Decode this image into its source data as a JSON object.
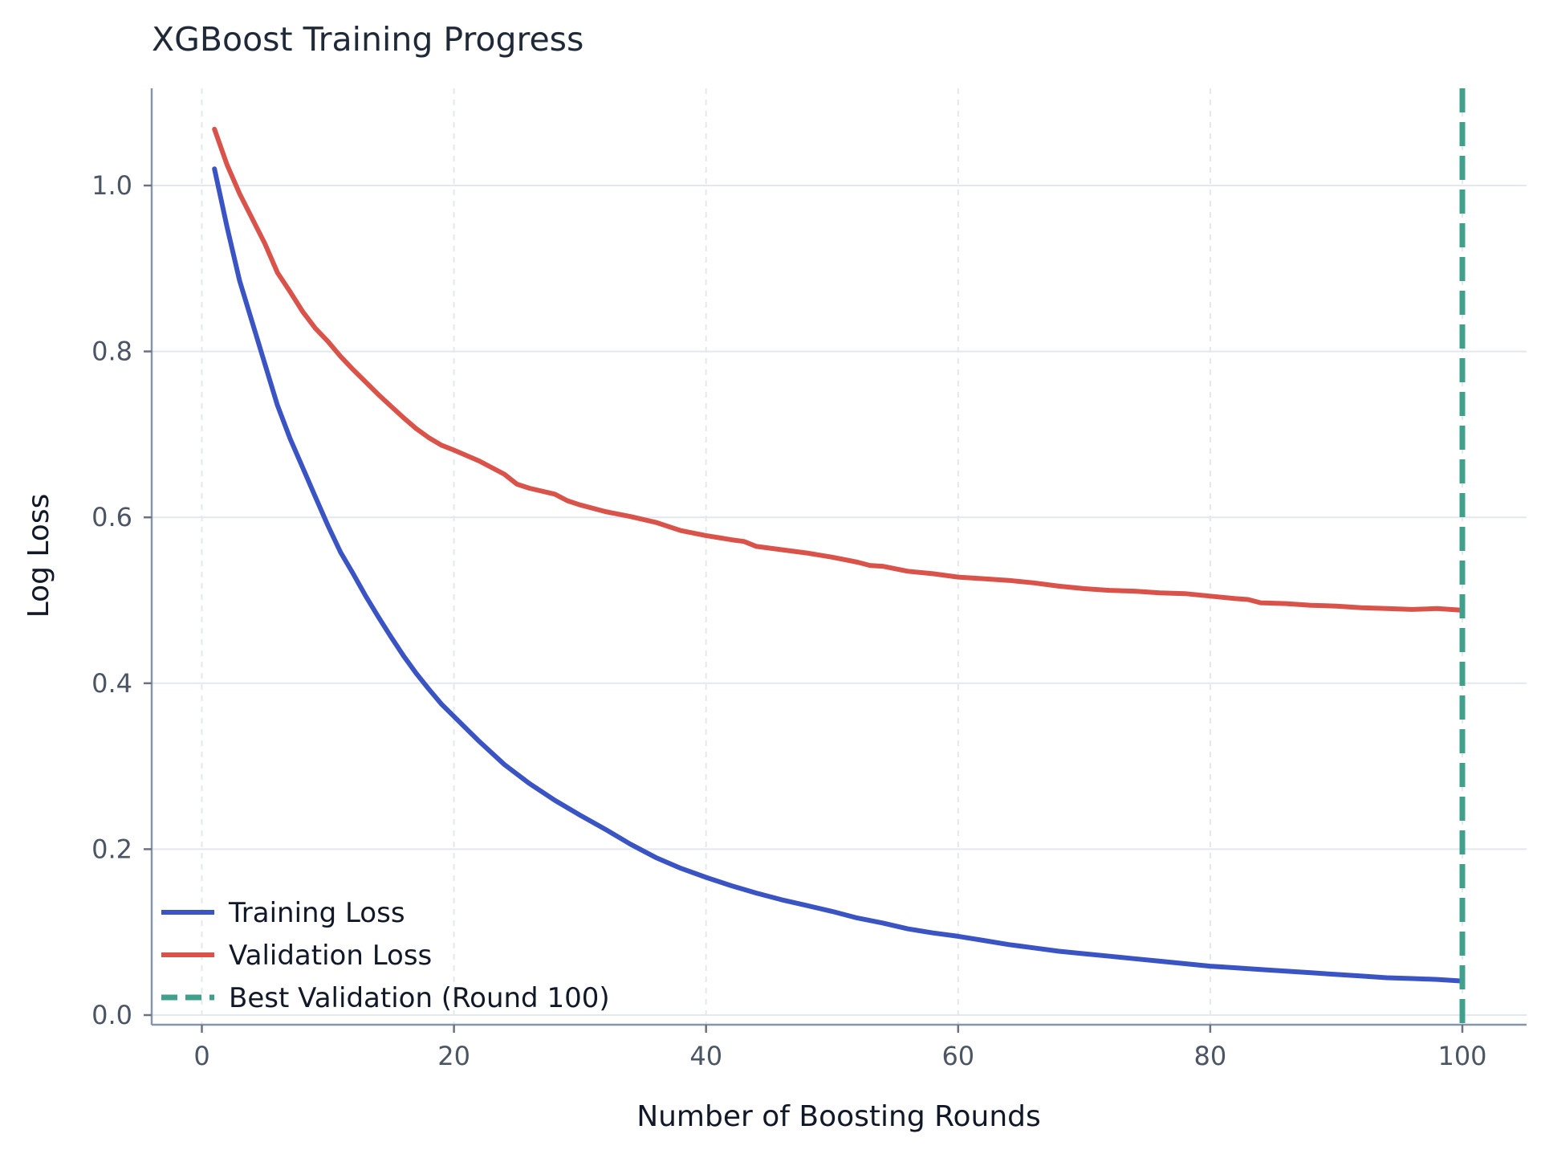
{
  "chart_data": {
    "type": "line",
    "title": "XGBoost Training Progress",
    "xlabel": "Number of Boosting Rounds",
    "ylabel": "Log Loss",
    "xlim": [
      -4,
      105
    ],
    "ylim": [
      -0.01,
      1.12
    ],
    "x_ticks": [
      0,
      20,
      40,
      60,
      80,
      100
    ],
    "y_ticks": [
      0.0,
      0.2,
      0.4,
      0.6,
      0.8,
      1.0
    ],
    "x_tick_labels": [
      "0",
      "20",
      "40",
      "60",
      "80",
      "100"
    ],
    "y_tick_labels": [
      "0.0",
      "0.2",
      "0.4",
      "0.6",
      "0.8",
      "1.0"
    ],
    "grid": true,
    "legend_position": "bottom-left",
    "series": [
      {
        "name": "Training Loss",
        "color": "#3b54c4",
        "anchors": [
          [
            1,
            1.02
          ],
          [
            2,
            0.95
          ],
          [
            3,
            0.885
          ],
          [
            4,
            0.835
          ],
          [
            5,
            0.785
          ],
          [
            6,
            0.735
          ],
          [
            7,
            0.695
          ],
          [
            8,
            0.66
          ],
          [
            9,
            0.625
          ],
          [
            10,
            0.59
          ],
          [
            11,
            0.558
          ],
          [
            12,
            0.532
          ],
          [
            13,
            0.505
          ],
          [
            14,
            0.48
          ],
          [
            15,
            0.456
          ],
          [
            16,
            0.433
          ],
          [
            17,
            0.412
          ],
          [
            18,
            0.393
          ],
          [
            19,
            0.375
          ],
          [
            20,
            0.36
          ],
          [
            22,
            0.33
          ],
          [
            24,
            0.302
          ],
          [
            26,
            0.279
          ],
          [
            28,
            0.259
          ],
          [
            30,
            0.241
          ],
          [
            32,
            0.224
          ],
          [
            34,
            0.206
          ],
          [
            36,
            0.19
          ],
          [
            38,
            0.177
          ],
          [
            40,
            0.166
          ],
          [
            42,
            0.156
          ],
          [
            44,
            0.147
          ],
          [
            46,
            0.139
          ],
          [
            48,
            0.132
          ],
          [
            50,
            0.125
          ],
          [
            52,
            0.117
          ],
          [
            54,
            0.111
          ],
          [
            56,
            0.104
          ],
          [
            58,
            0.099
          ],
          [
            60,
            0.095
          ],
          [
            62,
            0.09
          ],
          [
            64,
            0.085
          ],
          [
            66,
            0.081
          ],
          [
            68,
            0.077
          ],
          [
            70,
            0.074
          ],
          [
            72,
            0.071
          ],
          [
            74,
            0.068
          ],
          [
            76,
            0.065
          ],
          [
            78,
            0.062
          ],
          [
            80,
            0.059
          ],
          [
            82,
            0.057
          ],
          [
            84,
            0.055
          ],
          [
            86,
            0.053
          ],
          [
            88,
            0.051
          ],
          [
            90,
            0.049
          ],
          [
            92,
            0.047
          ],
          [
            94,
            0.045
          ],
          [
            96,
            0.044
          ],
          [
            98,
            0.043
          ],
          [
            100,
            0.041
          ]
        ]
      },
      {
        "name": "Validation Loss",
        "color": "#d9534a",
        "anchors": [
          [
            1,
            1.068
          ],
          [
            2,
            1.025
          ],
          [
            3,
            0.99
          ],
          [
            4,
            0.96
          ],
          [
            5,
            0.93
          ],
          [
            6,
            0.895
          ],
          [
            7,
            0.872
          ],
          [
            8,
            0.848
          ],
          [
            9,
            0.828
          ],
          [
            10,
            0.812
          ],
          [
            11,
            0.794
          ],
          [
            12,
            0.778
          ],
          [
            13,
            0.763
          ],
          [
            14,
            0.748
          ],
          [
            15,
            0.734
          ],
          [
            16,
            0.72
          ],
          [
            17,
            0.707
          ],
          [
            18,
            0.696
          ],
          [
            19,
            0.687
          ],
          [
            20,
            0.681
          ],
          [
            22,
            0.668
          ],
          [
            24,
            0.652
          ],
          [
            25,
            0.64
          ],
          [
            26,
            0.635
          ],
          [
            28,
            0.628
          ],
          [
            29,
            0.62
          ],
          [
            30,
            0.615
          ],
          [
            32,
            0.607
          ],
          [
            34,
            0.601
          ],
          [
            36,
            0.594
          ],
          [
            38,
            0.584
          ],
          [
            40,
            0.578
          ],
          [
            42,
            0.573
          ],
          [
            43,
            0.571
          ],
          [
            44,
            0.565
          ],
          [
            46,
            0.561
          ],
          [
            48,
            0.557
          ],
          [
            50,
            0.552
          ],
          [
            52,
            0.546
          ],
          [
            53,
            0.542
          ],
          [
            54,
            0.541
          ],
          [
            56,
            0.535
          ],
          [
            58,
            0.532
          ],
          [
            60,
            0.528
          ],
          [
            62,
            0.526
          ],
          [
            64,
            0.524
          ],
          [
            66,
            0.521
          ],
          [
            68,
            0.517
          ],
          [
            70,
            0.514
          ],
          [
            72,
            0.512
          ],
          [
            74,
            0.511
          ],
          [
            76,
            0.509
          ],
          [
            78,
            0.508
          ],
          [
            80,
            0.505
          ],
          [
            82,
            0.502
          ],
          [
            83,
            0.501
          ],
          [
            84,
            0.497
          ],
          [
            86,
            0.496
          ],
          [
            88,
            0.494
          ],
          [
            90,
            0.493
          ],
          [
            92,
            0.491
          ],
          [
            94,
            0.49
          ],
          [
            96,
            0.489
          ],
          [
            98,
            0.49
          ],
          [
            100,
            0.488
          ]
        ]
      }
    ],
    "reference_lines": [
      {
        "name": "Best Validation (Round 100)",
        "orientation": "vertical",
        "x": 100,
        "color": "#41a08c",
        "style": "dashed"
      }
    ]
  }
}
